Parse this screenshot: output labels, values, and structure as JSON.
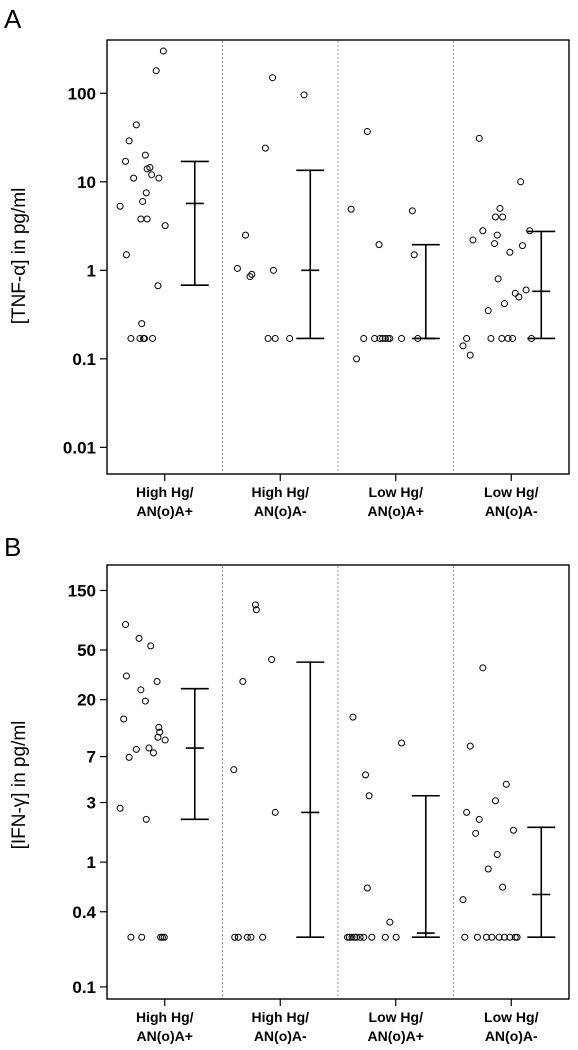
{
  "chart_data": [
    {
      "type": "scatter",
      "panel_label": "A",
      "ylabel": "[TNF-α] in pg/ml",
      "yscale": "log",
      "ylim": [
        0.005,
        400
      ],
      "yticks": [
        0.01,
        0.1,
        1,
        10,
        100
      ],
      "ytick_labels": [
        "0.01",
        "0.1",
        "1",
        "10",
        "100"
      ],
      "grid": false,
      "categories": [
        {
          "line1": "High Hg/",
          "line2": "AN(o)A+"
        },
        {
          "line1": "High Hg/",
          "line2": "AN(o)A-"
        },
        {
          "line1": "Low Hg/",
          "line2": "AN(o)A+"
        },
        {
          "line1": "Low Hg/",
          "line2": "AN(o)A-"
        }
      ],
      "groups": [
        {
          "points": [
            [
              0.12,
              5.3
            ],
            [
              0.18,
              17
            ],
            [
              0.19,
              1.5
            ],
            [
              0.22,
              29
            ],
            [
              0.24,
              0.17
            ],
            [
              0.27,
              11
            ],
            [
              0.3,
              44
            ],
            [
              0.34,
              0.17
            ],
            [
              0.35,
              3.8
            ],
            [
              0.36,
              0.25
            ],
            [
              0.37,
              6
            ],
            [
              0.38,
              0.17
            ],
            [
              0.39,
              0.17
            ],
            [
              0.4,
              20
            ],
            [
              0.41,
              7.5
            ],
            [
              0.42,
              3.8
            ],
            [
              0.42,
              14
            ],
            [
              0.45,
              14.5
            ],
            [
              0.47,
              12
            ],
            [
              0.48,
              0.17
            ],
            [
              0.52,
              180
            ],
            [
              0.54,
              0.67
            ],
            [
              0.55,
              11
            ],
            [
              0.6,
              300
            ],
            [
              0.62,
              3.2
            ]
          ],
          "median": 5.7,
          "low": 0.68,
          "high": 17
        },
        {
          "points": [
            [
              0.14,
              1.05
            ],
            [
              0.23,
              2.5
            ],
            [
              0.28,
              0.85
            ],
            [
              0.3,
              0.9
            ],
            [
              0.45,
              24
            ],
            [
              0.48,
              0.17
            ],
            [
              0.53,
              150
            ],
            [
              0.54,
              1
            ],
            [
              0.56,
              0.17
            ],
            [
              0.72,
              0.17
            ],
            [
              0.88,
              96
            ]
          ],
          "median": 1,
          "low": 0.17,
          "high": 13.5
        },
        {
          "points": [
            [
              0.12,
              4.9
            ],
            [
              0.18,
              0.1
            ],
            [
              0.26,
              0.17
            ],
            [
              0.3,
              37
            ],
            [
              0.38,
              0.17
            ],
            [
              0.43,
              1.95
            ],
            [
              0.44,
              0.17
            ],
            [
              0.47,
              0.17
            ],
            [
              0.5,
              0.17
            ],
            [
              0.53,
              0.17
            ],
            [
              0.55,
              0.17
            ],
            [
              0.68,
              0.17
            ],
            [
              0.8,
              4.7
            ],
            [
              0.82,
              1.5
            ],
            [
              0.86,
              0.17
            ]
          ],
          "median": 0.17,
          "low": 0.17,
          "high": 1.95
        },
        {
          "points": [
            [
              0.08,
              0.14
            ],
            [
              0.12,
              0.17
            ],
            [
              0.16,
              0.11
            ],
            [
              0.19,
              2.2
            ],
            [
              0.26,
              31
            ],
            [
              0.3,
              2.8
            ],
            [
              0.36,
              0.35
            ],
            [
              0.39,
              0.17
            ],
            [
              0.43,
              2
            ],
            [
              0.44,
              4
            ],
            [
              0.46,
              2.5
            ],
            [
              0.47,
              0.8
            ],
            [
              0.49,
              5
            ],
            [
              0.51,
              0.17
            ],
            [
              0.52,
              4
            ],
            [
              0.54,
              0.42
            ],
            [
              0.58,
              0.17
            ],
            [
              0.6,
              1.6
            ],
            [
              0.63,
              0.17
            ],
            [
              0.66,
              0.55
            ],
            [
              0.7,
              0.5
            ],
            [
              0.72,
              10
            ],
            [
              0.74,
              1.9
            ],
            [
              0.78,
              0.6
            ],
            [
              0.82,
              2.8
            ],
            [
              0.84,
              0.17
            ]
          ],
          "median": 0.58,
          "low": 0.17,
          "high": 2.75
        }
      ]
    },
    {
      "type": "scatter",
      "panel_label": "B",
      "ylabel": "[IFN-γ] in pg/ml",
      "yscale": "log",
      "ylim": [
        0.08,
        240
      ],
      "yticks": [
        0.1,
        0.4,
        1,
        3,
        7,
        20,
        50,
        150
      ],
      "ytick_labels": [
        "0.1",
        "0.4",
        "1",
        "3",
        "7",
        "20",
        "50",
        "150"
      ],
      "grid": false,
      "categories": [
        {
          "line1": "High Hg/",
          "line2": "AN(o)A+"
        },
        {
          "line1": "High Hg/",
          "line2": "AN(o)A-"
        },
        {
          "line1": "Low Hg/",
          "line2": "AN(o)A+"
        },
        {
          "line1": "Low Hg/",
          "line2": "AN(o)A-"
        }
      ],
      "groups": [
        {
          "points": [
            [
              0.12,
              2.7
            ],
            [
              0.16,
              14
            ],
            [
              0.18,
              80
            ],
            [
              0.19,
              31
            ],
            [
              0.22,
              6.9
            ],
            [
              0.24,
              0.25
            ],
            [
              0.3,
              8
            ],
            [
              0.33,
              62
            ],
            [
              0.35,
              24
            ],
            [
              0.36,
              0.25
            ],
            [
              0.4,
              19.5
            ],
            [
              0.41,
              2.2
            ],
            [
              0.44,
              8.2
            ],
            [
              0.46,
              54
            ],
            [
              0.49,
              7.5
            ],
            [
              0.53,
              28
            ],
            [
              0.54,
              10
            ],
            [
              0.55,
              12
            ],
            [
              0.56,
              11
            ],
            [
              0.57,
              0.25
            ],
            [
              0.59,
              0.25
            ],
            [
              0.61,
              0.25
            ],
            [
              0.62,
              9.5
            ]
          ],
          "median": 8.2,
          "low": 2.2,
          "high": 24.5
        },
        {
          "points": [
            [
              0.1,
              5.5
            ],
            [
              0.11,
              0.25
            ],
            [
              0.15,
              0.25
            ],
            [
              0.2,
              28
            ],
            [
              0.25,
              0.25
            ],
            [
              0.29,
              0.25
            ],
            [
              0.34,
              115
            ],
            [
              0.35,
              105
            ],
            [
              0.42,
              0.25
            ],
            [
              0.52,
              42
            ],
            [
              0.56,
              2.5
            ]
          ],
          "median": 2.5,
          "low": 0.25,
          "high": 40
        },
        {
          "points": [
            [
              0.08,
              0.25
            ],
            [
              0.1,
              0.25
            ],
            [
              0.13,
              0.25
            ],
            [
              0.14,
              14.5
            ],
            [
              0.16,
              0.25
            ],
            [
              0.18,
              0.25
            ],
            [
              0.22,
              0.25
            ],
            [
              0.26,
              0.25
            ],
            [
              0.28,
              5
            ],
            [
              0.3,
              0.62
            ],
            [
              0.32,
              3.4
            ],
            [
              0.35,
              0.25
            ],
            [
              0.5,
              0.25
            ],
            [
              0.55,
              0.33
            ],
            [
              0.62,
              0.25
            ],
            [
              0.68,
              9
            ]
          ],
          "median": 0.27,
          "low": 0.25,
          "high": 3.4
        },
        {
          "points": [
            [
              0.08,
              0.5
            ],
            [
              0.1,
              0.25
            ],
            [
              0.12,
              2.5
            ],
            [
              0.16,
              8.5
            ],
            [
              0.22,
              1.7
            ],
            [
              0.24,
              0.25
            ],
            [
              0.26,
              2.2
            ],
            [
              0.3,
              36
            ],
            [
              0.34,
              0.25
            ],
            [
              0.36,
              0.88
            ],
            [
              0.4,
              0.25
            ],
            [
              0.44,
              3.1
            ],
            [
              0.46,
              1.15
            ],
            [
              0.48,
              0.25
            ],
            [
              0.52,
              0.63
            ],
            [
              0.54,
              0.25
            ],
            [
              0.56,
              4.2
            ],
            [
              0.6,
              0.25
            ],
            [
              0.64,
              1.8
            ],
            [
              0.66,
              0.25
            ],
            [
              0.68,
              0.25
            ]
          ],
          "median": 0.55,
          "low": 0.25,
          "high": 1.9
        }
      ]
    }
  ]
}
